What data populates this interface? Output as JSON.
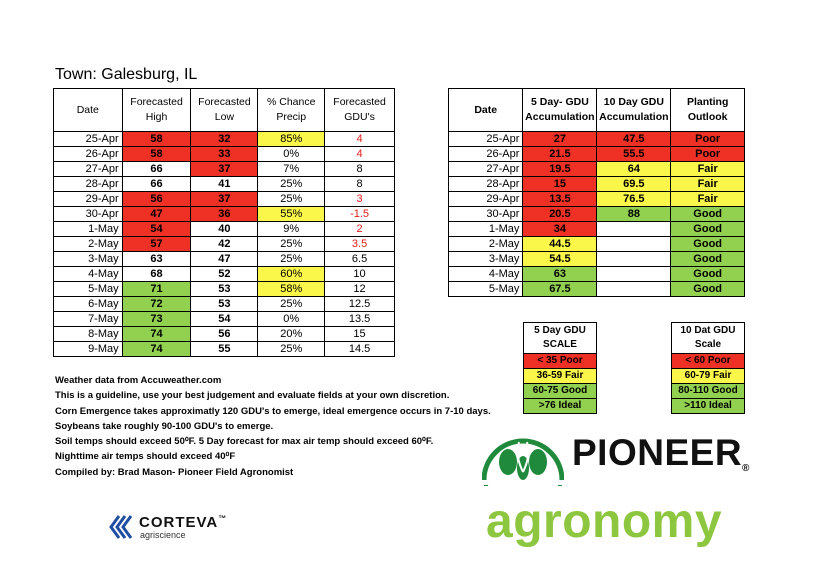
{
  "town": "Town: Galesburg, IL",
  "forecast": {
    "headers": [
      "Date",
      "Forecasted High",
      "Forecasted Low",
      "% Chance Precip",
      "Forecasted GDU's"
    ],
    "rows": [
      {
        "date": "25-Apr",
        "high": "58",
        "low": "32",
        "precip": "85%",
        "gdu": "4",
        "high_c": "red",
        "low_c": "red",
        "precip_c": "yel",
        "gdu_red": true
      },
      {
        "date": "26-Apr",
        "high": "58",
        "low": "33",
        "precip": "0%",
        "gdu": "4",
        "high_c": "red",
        "low_c": "red",
        "precip_c": "",
        "gdu_red": true
      },
      {
        "date": "27-Apr",
        "high": "66",
        "low": "37",
        "precip": "7%",
        "gdu": "8",
        "high_c": "",
        "low_c": "red",
        "precip_c": "",
        "gdu_red": false
      },
      {
        "date": "28-Apr",
        "high": "66",
        "low": "41",
        "precip": "25%",
        "gdu": "8",
        "high_c": "",
        "low_c": "",
        "precip_c": "",
        "gdu_red": false
      },
      {
        "date": "29-Apr",
        "high": "56",
        "low": "37",
        "precip": "25%",
        "gdu": "3",
        "high_c": "red",
        "low_c": "red",
        "precip_c": "",
        "gdu_red": true
      },
      {
        "date": "30-Apr",
        "high": "47",
        "low": "36",
        "precip": "55%",
        "gdu": "-1.5",
        "high_c": "red",
        "low_c": "red",
        "precip_c": "yel",
        "gdu_red": true
      },
      {
        "date": "1-May",
        "high": "54",
        "low": "40",
        "precip": "9%",
        "gdu": "2",
        "high_c": "red",
        "low_c": "",
        "precip_c": "",
        "gdu_red": true
      },
      {
        "date": "2-May",
        "high": "57",
        "low": "42",
        "precip": "25%",
        "gdu": "3.5",
        "high_c": "red",
        "low_c": "",
        "precip_c": "",
        "gdu_red": true
      },
      {
        "date": "3-May",
        "high": "63",
        "low": "47",
        "precip": "25%",
        "gdu": "6.5",
        "high_c": "",
        "low_c": "",
        "precip_c": "",
        "gdu_red": false
      },
      {
        "date": "4-May",
        "high": "68",
        "low": "52",
        "precip": "60%",
        "gdu": "10",
        "high_c": "",
        "low_c": "",
        "precip_c": "yel",
        "gdu_red": false
      },
      {
        "date": "5-May",
        "high": "71",
        "low": "53",
        "precip": "58%",
        "gdu": "12",
        "high_c": "grn",
        "low_c": "",
        "precip_c": "yel",
        "gdu_red": false
      },
      {
        "date": "6-May",
        "high": "72",
        "low": "53",
        "precip": "25%",
        "gdu": "12.5",
        "high_c": "grn",
        "low_c": "",
        "precip_c": "",
        "gdu_red": false
      },
      {
        "date": "7-May",
        "high": "73",
        "low": "54",
        "precip": "0%",
        "gdu": "13.5",
        "high_c": "grn",
        "low_c": "",
        "precip_c": "",
        "gdu_red": false
      },
      {
        "date": "8-May",
        "high": "74",
        "low": "56",
        "precip": "20%",
        "gdu": "15",
        "high_c": "grn",
        "low_c": "",
        "precip_c": "",
        "gdu_red": false
      },
      {
        "date": "9-May",
        "high": "74",
        "low": "55",
        "precip": "25%",
        "gdu": "14.5",
        "high_c": "grn",
        "low_c": "",
        "precip_c": "",
        "gdu_red": false
      }
    ]
  },
  "accumulation": {
    "headers": [
      "Date",
      "5 Day- GDU Accumulation",
      "10 Day GDU Accumulation",
      "Planting Outlook"
    ],
    "rows": [
      {
        "date": "25-Apr",
        "d5": "27",
        "d10": "47.5",
        "outlook": "Poor",
        "d5_c": "red",
        "d10_c": "red",
        "o_c": "red"
      },
      {
        "date": "26-Apr",
        "d5": "21.5",
        "d10": "55.5",
        "outlook": "Poor",
        "d5_c": "red",
        "d10_c": "red",
        "o_c": "red"
      },
      {
        "date": "27-Apr",
        "d5": "19.5",
        "d10": "64",
        "outlook": "Fair",
        "d5_c": "red",
        "d10_c": "yel",
        "o_c": "yel"
      },
      {
        "date": "28-Apr",
        "d5": "15",
        "d10": "69.5",
        "outlook": "Fair",
        "d5_c": "red",
        "d10_c": "yel",
        "o_c": "yel"
      },
      {
        "date": "29-Apr",
        "d5": "13.5",
        "d10": "76.5",
        "outlook": "Fair",
        "d5_c": "red",
        "d10_c": "yel",
        "o_c": "yel"
      },
      {
        "date": "30-Apr",
        "d5": "20.5",
        "d10": "88",
        "outlook": "Good",
        "d5_c": "red",
        "d10_c": "grn",
        "o_c": "grn"
      },
      {
        "date": "1-May",
        "d5": "34",
        "d10": "",
        "outlook": "Good",
        "d5_c": "red",
        "d10_c": "",
        "o_c": "grn"
      },
      {
        "date": "2-May",
        "d5": "44.5",
        "d10": "",
        "outlook": "Good",
        "d5_c": "yel",
        "d10_c": "",
        "o_c": "grn"
      },
      {
        "date": "3-May",
        "d5": "54.5",
        "d10": "",
        "outlook": "Good",
        "d5_c": "yel",
        "d10_c": "",
        "o_c": "grn"
      },
      {
        "date": "4-May",
        "d5": "63",
        "d10": "",
        "outlook": "Good",
        "d5_c": "grn",
        "d10_c": "",
        "o_c": "grn"
      },
      {
        "date": "5-May",
        "d5": "67.5",
        "d10": "",
        "outlook": "Good",
        "d5_c": "grn",
        "d10_c": "",
        "o_c": "grn"
      }
    ]
  },
  "scale5": {
    "title1": "5 Day GDU",
    "title2": "SCALE",
    "rows": [
      "< 35 Poor",
      "36-59 Fair",
      "60-75 Good",
      ">76 Ideal"
    ]
  },
  "scale10": {
    "title1": "10 Dat GDU",
    "title2": "Scale",
    "rows": [
      "< 60 Poor",
      "60-79 Fair",
      "80-110 Good",
      ">110 Ideal"
    ]
  },
  "notes": [
    "Weather data from Accuweather.com",
    "This is a guideline, use your best judgement and evaluate fields at your own discretion.",
    "Corn Emergence takes approximatly 120 GDU's to emerge, ideal emergence occurs in 7-10 days.",
    "Soybeans take roughly 90-100 GDU's to emerge.",
    "Soil temps should exceed 50⁰F. 5 Day forecast for max air temp should exceed 60⁰F.",
    "Nighttime air temps should exceed 40⁰F",
    "Compiled by: Brad Mason- Pioneer Field Agronomist"
  ],
  "corteva": {
    "name": "CORTEVA",
    "tm": "™",
    "sub": "agriscience"
  },
  "pioneer": {
    "name": "PIONEER",
    "reg": "®",
    "sub": "agronomy"
  },
  "colors": {
    "red": "#ee3124",
    "yellow": "#fbf74a",
    "green": "#92d050",
    "pioneer_green": "#1f8a3b",
    "agronomy_green": "#8dc63f",
    "corteva_blue": "#1f4fa3"
  }
}
